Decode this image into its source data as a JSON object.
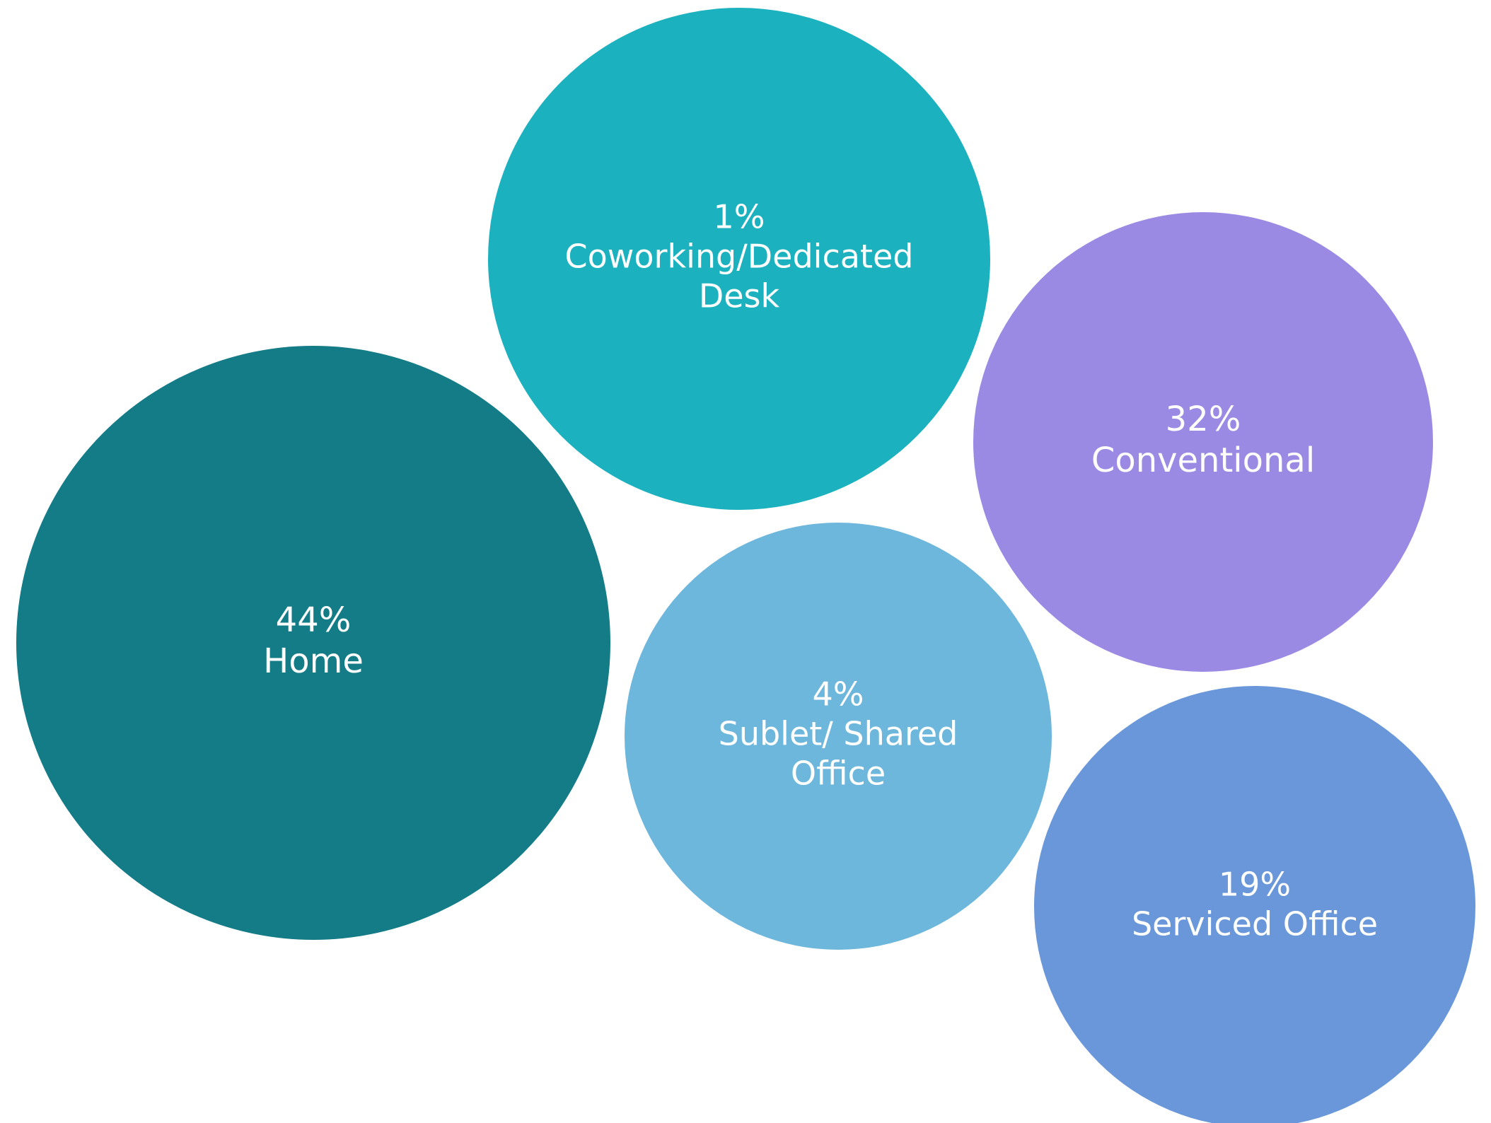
{
  "chart_data": {
    "type": "bubble",
    "title": "",
    "series": [
      {
        "category": "Home",
        "value_label": "44%",
        "value": 44,
        "label_lines": [
          "Home"
        ],
        "color": "#137c87"
      },
      {
        "category": "Coworking/Dedicated Desk",
        "value_label": "1%",
        "value": 1,
        "label_lines": [
          "Coworking/Dedicated",
          "Desk"
        ],
        "color": "#1cb1bf"
      },
      {
        "category": "Conventional",
        "value_label": "32%",
        "value": 32,
        "label_lines": [
          "Conventional"
        ],
        "color": "#9a8ae4"
      },
      {
        "category": "Sublet/ Shared Office",
        "value_label": "4%",
        "value": 4,
        "label_lines": [
          "Sublet/ Shared",
          "Office"
        ],
        "color": "#6db6dc"
      },
      {
        "category": "Serviced Office",
        "value_label": "19%",
        "value": 19,
        "label_lines": [
          "Serviced Office"
        ],
        "color": "#6a97da"
      }
    ]
  }
}
